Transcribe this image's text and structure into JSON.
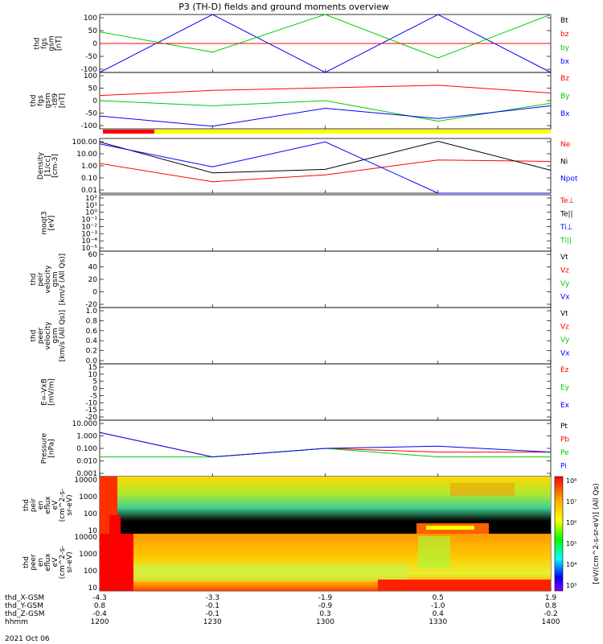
{
  "title": "P3 (TH-D) fields and ground moments overview",
  "colors": {
    "black": "#000000",
    "red": "#ff0000",
    "green": "#00cc00",
    "blue": "#0000ff",
    "bar_red": "#ff0000",
    "bar_yellow": "#ffff00"
  },
  "panels": [
    {
      "id": "fgs",
      "ylabel_lines": [
        "thd",
        "fgs",
        "gsm",
        "[nT]"
      ],
      "ticks": [
        "100",
        "50",
        "0",
        "-50",
        "-100"
      ],
      "legend": [
        "Bt",
        "bz",
        "by",
        "bx"
      ],
      "legend_colors": [
        "#000000",
        "#ff0000",
        "#00cc00",
        "#0000ff"
      ]
    },
    {
      "id": "fgs_lp",
      "ylabel_lines": [
        "thd",
        "fgs",
        "gsm",
        "-t89",
        "[nT]"
      ],
      "ticks": [
        "100",
        "50",
        "0",
        "-50",
        "-100"
      ],
      "legend": [
        "Bz",
        "By",
        "Bx"
      ],
      "legend_colors": [
        "#ff0000",
        "#00cc00",
        "#0000ff"
      ]
    },
    {
      "id": "density",
      "ylabel_lines": [
        "Density",
        "[1/cc]",
        "[cm-3]"
      ],
      "ticks": [
        "100.00",
        "10.00",
        "1.00",
        "0.10",
        "0.01"
      ],
      "legend": [
        "Ne",
        "Ni",
        "Npot"
      ],
      "legend_colors": [
        "#ff0000",
        "#000000",
        "#0000ff"
      ]
    },
    {
      "id": "temp",
      "ylabel_lines": [
        "moqt3",
        "[eV]"
      ],
      "ticks": [
        "10²",
        "10¹",
        "10⁰",
        "10⁻¹",
        "10⁻²",
        "10⁻³",
        "10⁻⁴",
        "10⁻⁵"
      ],
      "legend": [
        "Te⊥",
        "Te||",
        "Ti⊥",
        "Ti||"
      ],
      "legend_colors": [
        "#ff0000",
        "#000000",
        "#0000ff",
        "#00cc00"
      ]
    },
    {
      "id": "vi",
      "ylabel_lines": [
        "thd",
        "peir",
        "velocity",
        "gsm",
        "[km/s (All Qs)]"
      ],
      "ticks": [
        "60",
        "40",
        "20",
        "0",
        "-20"
      ],
      "legend": [
        "Vt",
        "Vz",
        "Vy",
        "Vx"
      ],
      "legend_colors": [
        "#000000",
        "#ff0000",
        "#00cc00",
        "#0000ff"
      ]
    },
    {
      "id": "ve",
      "ylabel_lines": [
        "thd",
        "peer",
        "velocity",
        "gsm",
        "[km/s (All Qs)]"
      ],
      "ticks": [
        "1.0",
        "0.8",
        "0.6",
        "0.4",
        "0.2",
        "0.0"
      ],
      "legend": [
        "Vt",
        "Vz",
        "Vy",
        "Vx"
      ],
      "legend_colors": [
        "#000000",
        "#ff0000",
        "#00cc00",
        "#0000ff"
      ]
    },
    {
      "id": "efield",
      "ylabel_lines": [
        "E=-VxB",
        "[mV/m]"
      ],
      "ticks": [
        "15",
        "10",
        "5",
        "0",
        "-5",
        "-10",
        "-15",
        "-20"
      ],
      "legend": [
        "Ez",
        "Ey",
        "Ex"
      ],
      "legend_colors": [
        "#ff0000",
        "#00cc00",
        "#0000ff"
      ]
    },
    {
      "id": "pressure",
      "ylabel_lines": [
        "Pressure",
        "[nPa]"
      ],
      "ticks": [
        "10.000",
        "1.000",
        "0.100",
        "0.010",
        "0.001"
      ],
      "legend": [
        "Pt",
        "Pb",
        "Pe",
        "Pi"
      ],
      "legend_colors": [
        "#000000",
        "#ff0000",
        "#00cc00",
        "#0000ff"
      ]
    },
    {
      "id": "ion_spec",
      "ylabel_lines": [
        "thd",
        "peir",
        "en",
        "eflux",
        "eV",
        "(cm^2-s-",
        "sr-eV)"
      ],
      "ticks": [
        "10000",
        "1000",
        "100",
        "10"
      ],
      "legend": [],
      "legend_colors": []
    },
    {
      "id": "ele_spec",
      "ylabel_lines": [
        "thd",
        "peer",
        "en",
        "eflux",
        "eV",
        "(cm^2-s-",
        "sr-eV)"
      ],
      "ticks": [
        "10000",
        "1000",
        "100",
        "10"
      ],
      "legend": [],
      "legend_colors": []
    }
  ],
  "colorbar": {
    "label": "[eV/(cm^2-s-sr-eV)] (All Qs)",
    "ticks": [
      "10⁸",
      "10⁷",
      "10⁶",
      "10⁵",
      "10⁴",
      "10³"
    ]
  },
  "x_axis": {
    "rows": [
      {
        "label": "thd_X-GSM",
        "values": [
          "-4.3",
          "-3.3",
          "-1.9",
          "0.5",
          "1.9"
        ]
      },
      {
        "label": "thd_Y-GSM",
        "values": [
          "0.8",
          "-0.1",
          "-0.9",
          "-1.0",
          "0.8"
        ]
      },
      {
        "label": "thd_Z-GSM",
        "values": [
          "-0.4",
          "-0.1",
          "0.3",
          "0.4",
          "-0.2"
        ]
      },
      {
        "label": "hhmm",
        "values": [
          "1200",
          "1230",
          "1300",
          "1330",
          "1400"
        ]
      }
    ],
    "date": "2021 Oct 06"
  },
  "chart_data": {
    "type": "line",
    "title": "P3 (TH-D) fields and ground moments overview",
    "x": [
      "1200",
      "1230",
      "1300",
      "1330",
      "1400"
    ],
    "xlabel": "hhmm",
    "panels": [
      {
        "name": "fgs",
        "ylim": [
          -100,
          100
        ],
        "series": [
          {
            "name": "bx",
            "values": [
              -100,
              100,
              -100,
              100,
              -100
            ]
          },
          {
            "name": "by",
            "values": [
              40,
              -30,
              100,
              -50,
              100
            ]
          },
          {
            "name": "bz",
            "values": [
              0,
              0,
              0,
              0,
              0
            ]
          }
        ]
      },
      {
        "name": "fgs-t89",
        "ylim": [
          -110,
          110
        ],
        "series": [
          {
            "name": "Bz",
            "values": [
              20,
              40,
              50,
              60,
              30
            ]
          },
          {
            "name": "By",
            "values": [
              0,
              -20,
              0,
              -80,
              -10
            ]
          },
          {
            "name": "Bx",
            "values": [
              -60,
              -100,
              -30,
              -70,
              -20
            ]
          }
        ]
      },
      {
        "name": "density",
        "scale": "log",
        "ylim": [
          0.005,
          300
        ],
        "series": [
          {
            "name": "Ne",
            "values": [
              2,
              0.05,
              0.2,
              4,
              3
            ]
          },
          {
            "name": "Ni",
            "values": [
              150,
              0.3,
              0.6,
              170,
              0.5
            ]
          },
          {
            "name": "Npot",
            "values": [
              100,
              1,
              150,
              0,
              0
            ]
          }
        ]
      },
      {
        "name": "pressure",
        "scale": "log",
        "ylim": [
          0.0005,
          20
        ],
        "series": [
          {
            "name": "Pb",
            "values": [
              2,
              0.02,
              0.1,
              0.05,
              0.05
            ]
          },
          {
            "name": "Pe",
            "values": [
              0.02,
              0.02,
              0.1,
              0.02,
              0.02
            ]
          },
          {
            "name": "Pi",
            "values": [
              2,
              0.02,
              0.1,
              0.15,
              0.05
            ]
          }
        ]
      }
    ]
  }
}
